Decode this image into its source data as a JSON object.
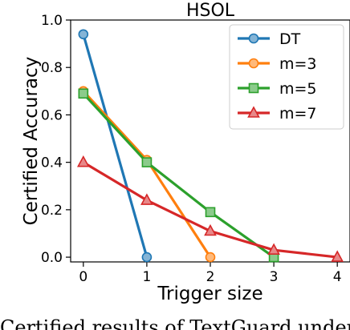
{
  "chart_data": {
    "type": "line",
    "title": "HSOL",
    "xlabel": "Trigger size",
    "ylabel": "Certified Accuracy",
    "xlim": [
      -0.2,
      4.2
    ],
    "ylim": [
      -0.02,
      1.0
    ],
    "xticks": [
      "0",
      "1",
      "2",
      "3",
      "4"
    ],
    "yticks": [
      "0.0",
      "0.2",
      "0.4",
      "0.6",
      "0.8",
      "1.0"
    ],
    "grid": false,
    "legend_position": "top-right",
    "series": [
      {
        "name": "DT",
        "color": "#1f77b4",
        "marker": "circle",
        "x": [
          0,
          1
        ],
        "y": [
          0.94,
          0.0
        ]
      },
      {
        "name": "m=3",
        "color": "#ff7f0e",
        "marker": "circle",
        "x": [
          0,
          1,
          2
        ],
        "y": [
          0.7,
          0.41,
          0.0
        ]
      },
      {
        "name": "m=5",
        "color": "#2ca02c",
        "marker": "square",
        "x": [
          0,
          1,
          2,
          3
        ],
        "y": [
          0.69,
          0.4,
          0.19,
          0.0
        ]
      },
      {
        "name": "m=7",
        "color": "#d62728",
        "marker": "triangle",
        "x": [
          0,
          1,
          2,
          3,
          4
        ],
        "y": [
          0.4,
          0.24,
          0.11,
          0.03,
          0.0
        ]
      }
    ]
  },
  "caption": "Certified results of TextGuard under the"
}
